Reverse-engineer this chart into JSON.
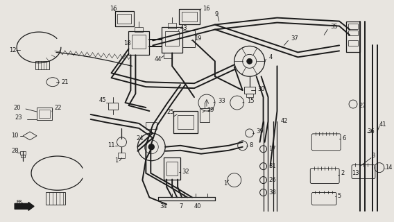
{
  "bg_color": "#e8e5e0",
  "line_color": "#1a1a1a",
  "figsize": [
    5.68,
    3.2
  ],
  "dpi": 100,
  "lw_tube": 1.4,
  "lw_med": 0.9,
  "lw_thin": 0.6,
  "font_size": 5.8
}
